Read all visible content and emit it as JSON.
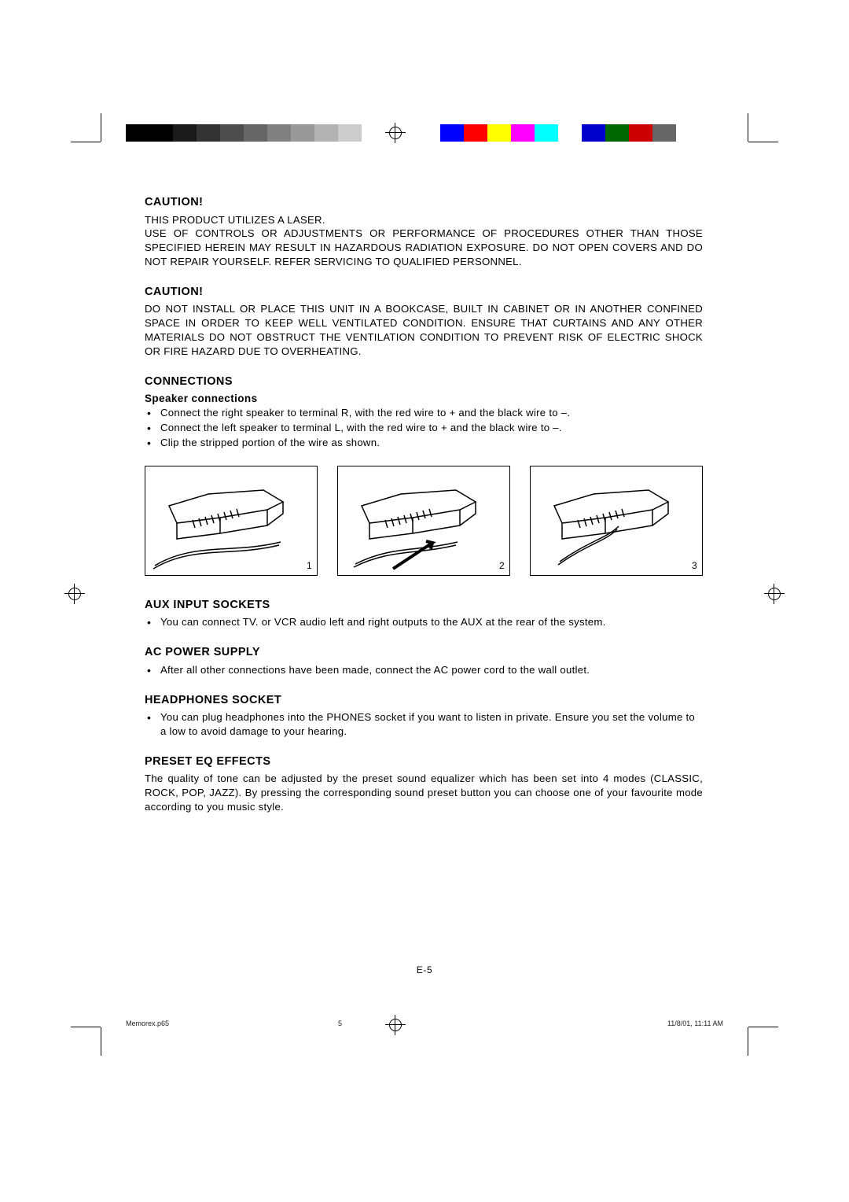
{
  "colorbars_gray": [
    "#000000",
    "#000000",
    "#1a1a1a",
    "#333333",
    "#4d4d4d",
    "#666666",
    "#808080",
    "#999999",
    "#b3b3b3",
    "#cccccc",
    "#ffffff"
  ],
  "colorbars_color": [
    "#0000ff",
    "#ff0000",
    "#ffff00",
    "#ff00ff",
    "#00ffff",
    "#ffffff",
    "#0000cc",
    "#006600",
    "#cc0000",
    "#666666"
  ],
  "sections": {
    "caution1": {
      "heading": "CAUTION!",
      "lines": [
        "THIS PRODUCT UTILIZES A LASER.",
        "USE OF CONTROLS OR ADJUSTMENTS OR PERFORMANCE OF PROCEDURES OTHER THAN THOSE SPECIFIED HEREIN MAY RESULT IN HAZARDOUS RADIATION EXPOSURE. DO NOT OPEN COVERS AND DO NOT REPAIR YOURSELF. REFER SERVICING TO QUALIFIED PERSONNEL."
      ]
    },
    "caution2": {
      "heading": "CAUTION!",
      "text": "DO NOT INSTALL OR PLACE THIS UNIT IN A BOOKCASE, BUILT IN CABINET OR IN ANOTHER CONFINED SPACE IN ORDER TO KEEP WELL VENTILATED CONDITION. ENSURE THAT CURTAINS AND ANY OTHER MATERIALS DO NOT OBSTRUCT THE VENTILATION CONDITION TO PREVENT RISK OF ELECTRIC SHOCK OR FIRE HAZARD DUE TO OVERHEATING."
    },
    "connections": {
      "heading": "CONNECTIONS",
      "subhead": "Speaker connections",
      "bullets": [
        "Connect the right speaker to terminal R, with the red wire to + and the black wire to –.",
        "Connect the left speaker to terminal L, with the red wire to + and the black wire to –.",
        "Clip the stripped portion of the wire as shown."
      ],
      "figures": [
        "1",
        "2",
        "3"
      ]
    },
    "aux": {
      "heading": "AUX INPUT SOCKETS",
      "bullets": [
        "You can connect TV. or VCR audio left and right outputs to the AUX at the rear of the system."
      ]
    },
    "ac": {
      "heading": "AC POWER SUPPLY",
      "bullets": [
        "After all other connections have been made, connect the AC power cord to the wall outlet."
      ]
    },
    "headphones": {
      "heading": "HEADPHONES SOCKET",
      "bullets": [
        "You can plug headphones into the PHONES socket if you want to listen in private. Ensure you set the volume to a low to avoid damage to your hearing."
      ]
    },
    "eq": {
      "heading": "PRESET EQ EFFECTS",
      "text": "The quality of tone can be adjusted by the preset sound equalizer which has been set into 4 modes (CLASSIC, ROCK, POP, JAZZ). By pressing the corresponding sound preset button you can choose one of your favourite mode according to you music style."
    }
  },
  "page_number": "E-5",
  "footer": {
    "file": "Memorex.p65",
    "page": "5",
    "timestamp": "11/8/01, 11:11 AM"
  }
}
